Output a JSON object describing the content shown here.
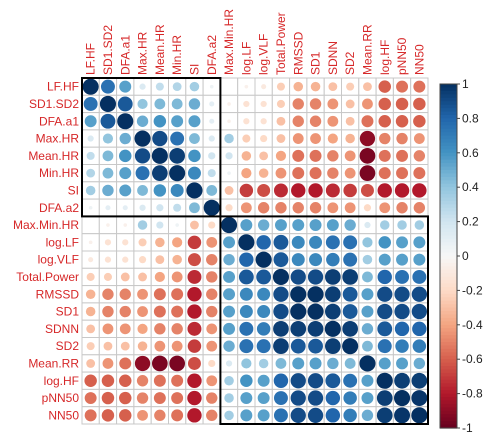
{
  "chart_data": {
    "type": "heatmap",
    "title": "",
    "variables": [
      "LF.HF",
      "SD1.SD2",
      "DFA.a1",
      "Max.HR",
      "Mean.HR",
      "Min.HR",
      "SI",
      "DFA.a2",
      "Max.Min.HR",
      "log.LF",
      "log.VLF",
      "Total.Power",
      "RMSSD",
      "SD1",
      "SDNN",
      "SD2",
      "Mean.RR",
      "log.HF",
      "pNN50",
      "NN50"
    ],
    "value_range": [
      -1,
      1
    ],
    "colorbar_ticks": [
      "1",
      "0.8",
      "0.6",
      "0.4",
      "0.2",
      "0",
      "-0.2",
      "-0.4",
      "-0.6",
      "-0.8",
      "-1"
    ],
    "cluster_boxes": [
      [
        1,
        8
      ],
      [
        9,
        20
      ]
    ],
    "matrix": [
      [
        1,
        0.75,
        0.55,
        0.15,
        0.25,
        0.3,
        0.35,
        0.05,
        0,
        -0.05,
        -0.1,
        -0.25,
        -0.35,
        -0.35,
        -0.3,
        -0.25,
        -0.3,
        -0.6,
        -0.55,
        -0.55
      ],
      [
        0.75,
        1,
        0.85,
        0.4,
        0.45,
        0.45,
        0.5,
        0.1,
        -0.05,
        -0.15,
        -0.15,
        -0.25,
        -0.5,
        -0.5,
        -0.45,
        -0.3,
        -0.45,
        -0.6,
        -0.6,
        -0.6
      ],
      [
        0.55,
        0.85,
        1,
        0.5,
        0.6,
        0.55,
        0.55,
        0.1,
        -0.05,
        -0.15,
        -0.15,
        -0.3,
        -0.5,
        -0.5,
        -0.45,
        -0.3,
        -0.55,
        -0.6,
        -0.6,
        -0.6
      ],
      [
        0.15,
        0.4,
        0.5,
        1,
        0.9,
        0.75,
        0.45,
        0.15,
        0.35,
        -0.25,
        -0.2,
        -0.3,
        -0.45,
        -0.45,
        -0.4,
        -0.35,
        -0.9,
        -0.5,
        -0.5,
        -0.45
      ],
      [
        0.25,
        0.45,
        0.6,
        0.9,
        1,
        0.95,
        0.6,
        0.2,
        0.2,
        -0.35,
        -0.3,
        -0.4,
        -0.55,
        -0.55,
        -0.5,
        -0.45,
        -0.95,
        -0.55,
        -0.55,
        -0.5
      ],
      [
        0.3,
        0.45,
        0.55,
        0.75,
        0.95,
        1,
        0.65,
        0.25,
        0.05,
        -0.4,
        -0.35,
        -0.45,
        -0.55,
        -0.55,
        -0.5,
        -0.45,
        -0.95,
        -0.55,
        -0.55,
        -0.55
      ],
      [
        0.35,
        0.5,
        0.55,
        0.45,
        0.6,
        0.65,
        1,
        0.45,
        -0.3,
        -0.7,
        -0.65,
        -0.75,
        -0.8,
        -0.8,
        -0.75,
        -0.7,
        -0.65,
        -0.8,
        -0.8,
        -0.8
      ],
      [
        0.05,
        0.1,
        0.1,
        0.15,
        0.2,
        0.25,
        0.45,
        1,
        -0.2,
        -0.45,
        -0.5,
        -0.5,
        -0.5,
        -0.5,
        -0.45,
        -0.45,
        -0.2,
        -0.45,
        -0.5,
        -0.5
      ],
      [
        0,
        -0.05,
        -0.05,
        0.35,
        0.2,
        0.05,
        -0.3,
        -0.2,
        1,
        0.55,
        0.5,
        0.55,
        0.55,
        0.55,
        0.55,
        0.5,
        0.15,
        0.35,
        0.35,
        0.35
      ],
      [
        -0.05,
        -0.15,
        -0.15,
        -0.25,
        -0.35,
        -0.4,
        -0.7,
        -0.45,
        0.55,
        1,
        0.8,
        0.85,
        0.65,
        0.65,
        0.75,
        0.75,
        0.4,
        0.6,
        0.55,
        0.55
      ],
      [
        -0.1,
        -0.15,
        -0.15,
        -0.2,
        -0.3,
        -0.35,
        -0.65,
        -0.5,
        0.5,
        0.8,
        1,
        0.85,
        0.65,
        0.65,
        0.7,
        0.75,
        0.35,
        0.55,
        0.55,
        0.55
      ],
      [
        -0.25,
        -0.25,
        -0.3,
        -0.3,
        -0.4,
        -0.45,
        -0.75,
        -0.5,
        0.55,
        0.85,
        0.85,
        1,
        0.9,
        0.9,
        0.95,
        0.95,
        0.45,
        0.8,
        0.75,
        0.75
      ],
      [
        -0.35,
        -0.5,
        -0.5,
        -0.45,
        -0.55,
        -0.55,
        -0.8,
        -0.5,
        0.55,
        0.65,
        0.65,
        0.9,
        1,
        1,
        0.95,
        0.85,
        0.55,
        0.9,
        0.9,
        0.9
      ],
      [
        -0.35,
        -0.5,
        -0.5,
        -0.45,
        -0.55,
        -0.55,
        -0.8,
        -0.5,
        0.55,
        0.65,
        0.65,
        0.9,
        1,
        1,
        0.95,
        0.85,
        0.55,
        0.9,
        0.9,
        0.9
      ],
      [
        -0.3,
        -0.45,
        -0.45,
        -0.4,
        -0.5,
        -0.5,
        -0.75,
        -0.45,
        0.55,
        0.75,
        0.7,
        0.95,
        0.95,
        0.95,
        1,
        0.95,
        0.5,
        0.85,
        0.8,
        0.8
      ],
      [
        -0.25,
        -0.3,
        -0.3,
        -0.35,
        -0.45,
        -0.45,
        -0.7,
        -0.45,
        0.5,
        0.75,
        0.75,
        0.95,
        0.85,
        0.85,
        0.95,
        1,
        0.45,
        0.75,
        0.7,
        0.7
      ],
      [
        -0.3,
        -0.45,
        -0.55,
        -0.9,
        -0.95,
        -0.95,
        -0.65,
        -0.2,
        0.15,
        0.4,
        0.35,
        0.45,
        0.55,
        0.55,
        0.5,
        0.45,
        1,
        0.55,
        0.55,
        0.5
      ],
      [
        -0.6,
        -0.6,
        -0.6,
        -0.5,
        -0.55,
        -0.55,
        -0.8,
        -0.45,
        0.35,
        0.6,
        0.55,
        0.8,
        0.9,
        0.9,
        0.85,
        0.75,
        0.55,
        1,
        0.95,
        0.95
      ],
      [
        -0.55,
        -0.6,
        -0.6,
        -0.5,
        -0.55,
        -0.55,
        -0.8,
        -0.5,
        0.35,
        0.55,
        0.55,
        0.75,
        0.9,
        0.9,
        0.8,
        0.7,
        0.55,
        0.95,
        1,
        0.98
      ],
      [
        -0.55,
        -0.6,
        -0.6,
        -0.45,
        -0.5,
        -0.55,
        -0.8,
        -0.5,
        0.35,
        0.55,
        0.55,
        0.75,
        0.9,
        0.9,
        0.8,
        0.7,
        0.5,
        0.95,
        0.98,
        1
      ]
    ],
    "colors": {
      "label": "#d62728",
      "grid": "#c8c8c8",
      "box": "#000000",
      "scale": [
        "#67001f",
        "#b2182b",
        "#d6604d",
        "#f4a582",
        "#fddbc7",
        "#f7f7f7",
        "#d1e5f0",
        "#92c5de",
        "#4393c3",
        "#2166ac",
        "#053061"
      ]
    }
  }
}
